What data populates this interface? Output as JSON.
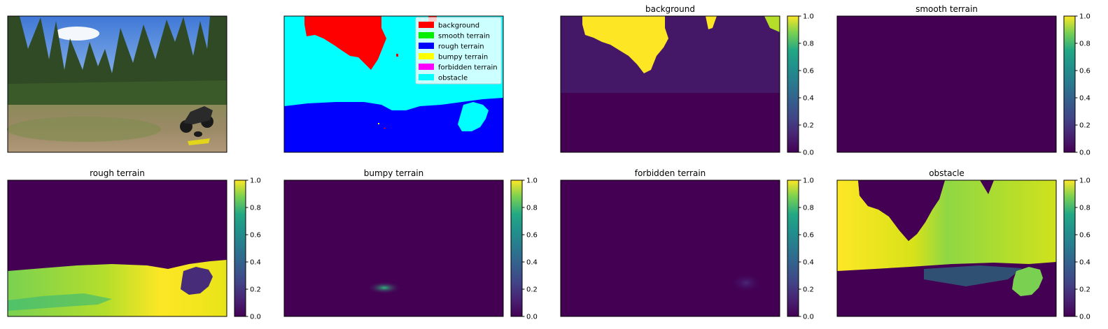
{
  "figure": {
    "legend": [
      {
        "label": "background",
        "color": "#ff0000"
      },
      {
        "label": "smooth terrain",
        "color": "#00ee00"
      },
      {
        "label": "rough terrain",
        "color": "#0000ff"
      },
      {
        "label": "bumpy terrain",
        "color": "#ffff00"
      },
      {
        "label": "forbidden terrain",
        "color": "#ff00ff"
      },
      {
        "label": "obstacle",
        "color": "#00ffff"
      }
    ]
  },
  "chart_data": [
    {
      "type": "image",
      "content": "input photo: forest clearing with parked motorcycle",
      "title": ""
    },
    {
      "type": "image",
      "content": "segmentation mask",
      "title": "",
      "legend": [
        "background",
        "smooth terrain",
        "rough terrain",
        "bumpy terrain",
        "forbidden terrain",
        "obstacle"
      ]
    },
    {
      "type": "heatmap",
      "title": "background",
      "colormap": "viridis",
      "clim": [
        0.0,
        1.0
      ],
      "colorbar_ticks": [
        "0.0",
        "0.2",
        "0.4",
        "0.6",
        "0.8",
        "1.0"
      ]
    },
    {
      "type": "heatmap",
      "title": "smooth terrain",
      "colormap": "viridis",
      "clim": [
        0.0,
        1.0
      ],
      "colorbar_ticks": [
        "0.0",
        "0.2",
        "0.4",
        "0.6",
        "0.8",
        "1.0"
      ]
    },
    {
      "type": "heatmap",
      "title": "rough terrain",
      "colormap": "viridis",
      "clim": [
        0.0,
        1.0
      ],
      "colorbar_ticks": [
        "0.0",
        "0.2",
        "0.4",
        "0.6",
        "0.8",
        "1.0"
      ]
    },
    {
      "type": "heatmap",
      "title": "bumpy terrain",
      "colormap": "viridis",
      "clim": [
        0.0,
        1.0
      ],
      "colorbar_ticks": [
        "0.0",
        "0.2",
        "0.4",
        "0.6",
        "0.8",
        "1.0"
      ]
    },
    {
      "type": "heatmap",
      "title": "forbidden terrain",
      "colormap": "viridis",
      "clim": [
        0.0,
        1.0
      ],
      "colorbar_ticks": [
        "0.0",
        "0.2",
        "0.4",
        "0.6",
        "0.8",
        "1.0"
      ]
    },
    {
      "type": "heatmap",
      "title": "obstacle",
      "colormap": "viridis",
      "clim": [
        0.0,
        1.0
      ],
      "colorbar_ticks": [
        "0.0",
        "0.2",
        "0.4",
        "0.6",
        "0.8",
        "1.0"
      ]
    }
  ]
}
